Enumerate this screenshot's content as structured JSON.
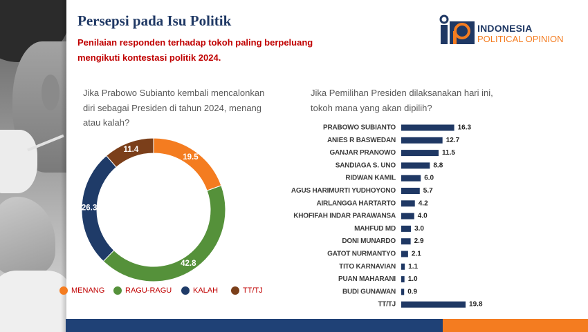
{
  "slide": {
    "title": "Persepsi pada Isu Politik",
    "subtitle_lines": [
      "Penilaian responden terhadap tokoh paling berpeluang",
      "mengikuti kontestasi politik 2024."
    ]
  },
  "logo": {
    "line1": "INDONESIA",
    "line2": "POLITICAL OPINION"
  },
  "colors": {
    "title": "#1f3864",
    "subtitle": "#c00000",
    "qtext": "#595959",
    "legend": "#c00000",
    "navy": "#1f3864",
    "footer-navy": "#1f4176",
    "orange": "#f47c20"
  },
  "chart_data": [
    {
      "type": "pie",
      "style": "donut",
      "title_lines": [
        "Jika Prabowo Subianto kembali mencalonkan",
        "diri sebagai Presiden di tahun 2024, menang",
        "atau kalah?"
      ],
      "categories": [
        "MENANG",
        "RAGU-RAGU",
        "KALAH",
        "TT/TJ"
      ],
      "values": [
        19.5,
        42.8,
        26.3,
        11.4
      ],
      "colors": [
        "#f47c20",
        "#55913a",
        "#1f3b68",
        "#7b3f1a"
      ],
      "data_labels": true,
      "legend": "bottom"
    },
    {
      "type": "bar",
      "orientation": "horizontal",
      "title_lines": [
        "Jika Pemilihan Presiden dilaksanakan hari ini,",
        "tokoh mana yang akan dipilih?"
      ],
      "categories": [
        "PRABOWO SUBIANTO",
        "ANIES R BASWEDAN",
        "GANJAR PRANOWO",
        "SANDIAGA S. UNO",
        "RIDWAN KAMIL",
        "AGUS HARIMURTI YUDHOYONO",
        "AIRLANGGA HARTARTO",
        "KHOFIFAH INDAR PARAWANSA",
        "MAHFUD MD",
        "DONI MUNARDO",
        "GATOT NURMANTYO",
        "TITO KARNAVIAN",
        "PUAN MAHARANI",
        "BUDI GUNAWAN",
        "TT/TJ"
      ],
      "values": [
        16.3,
        12.7,
        11.5,
        8.8,
        6.0,
        5.7,
        4.2,
        4.0,
        3.0,
        2.9,
        2.1,
        1.1,
        1.0,
        0.9,
        19.8
      ],
      "color": "#1f3864",
      "data_labels": true,
      "grid": false
    }
  ]
}
